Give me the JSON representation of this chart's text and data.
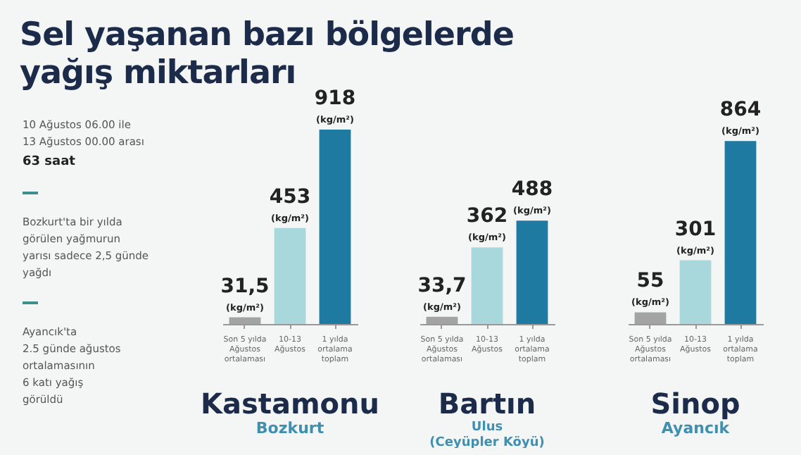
{
  "chart_data": [
    {
      "type": "other",
      "title": "Sel yaşanan bazı bölgelerde\nyağış miktarları",
      "annotations": [
        "10 Ağustos 06.00 ile\n13 Ağustos 00.00 arası",
        "63 saat",
        "Bozkurt'ta bir yılda\ngörülen yağmurun\nyarısı sadece 2,5 günde\nyağdı",
        "Ayancık'ta\n2.5 günde ağustos\nortalamasının\n6 katı yağış\ngörüldü"
      ]
    },
    {
      "type": "bar",
      "title": "Kastamonu",
      "subtitle": "Bozkurt",
      "categories": [
        "Son 5 yılda\nAğustos\nortalaması",
        "10-13\nAğustos",
        "1 yılda\nortalama\ntoplam"
      ],
      "values": [
        31.5,
        453,
        918
      ],
      "colors": [
        "#a3a3a3",
        "#a8d8dc",
        "#1e7aa0"
      ],
      "value_labels": [
        "31,5",
        "453",
        "918"
      ],
      "ylabel": "(kg/m²)",
      "tick_labels": "x"
    },
    {
      "type": "bar",
      "title": "Bartın",
      "subtitle": "Ulus\n(Ceyüpler Köyü)",
      "categories": [
        "Son 5 yılda\nAğustos\nortalaması",
        "10-13\nAğustos",
        "1 yılda\nortalama\ntoplam"
      ],
      "values": [
        33.7,
        362,
        488
      ],
      "colors": [
        "#a3a3a3",
        "#a8d8dc",
        "#1e7aa0"
      ],
      "value_labels": [
        "33,7",
        "362",
        "488"
      ],
      "ylabel": "(kg/m²)",
      "tick_labels": "x"
    },
    {
      "type": "bar",
      "title": "Sinop",
      "subtitle": "Ayancık",
      "categories": [
        "Son 5 yılda\nAğustos\nortalaması",
        "10-13\nAğustos",
        "1 yılda\nortalama\ntoplam"
      ],
      "values": [
        55,
        301,
        864
      ],
      "colors": [
        "#a3a3a3",
        "#a8d8dc",
        "#1e7aa0"
      ],
      "value_labels": [
        "55",
        "301",
        "864"
      ],
      "ylabel": "(kg/m²)",
      "tick_labels": "x"
    }
  ]
}
